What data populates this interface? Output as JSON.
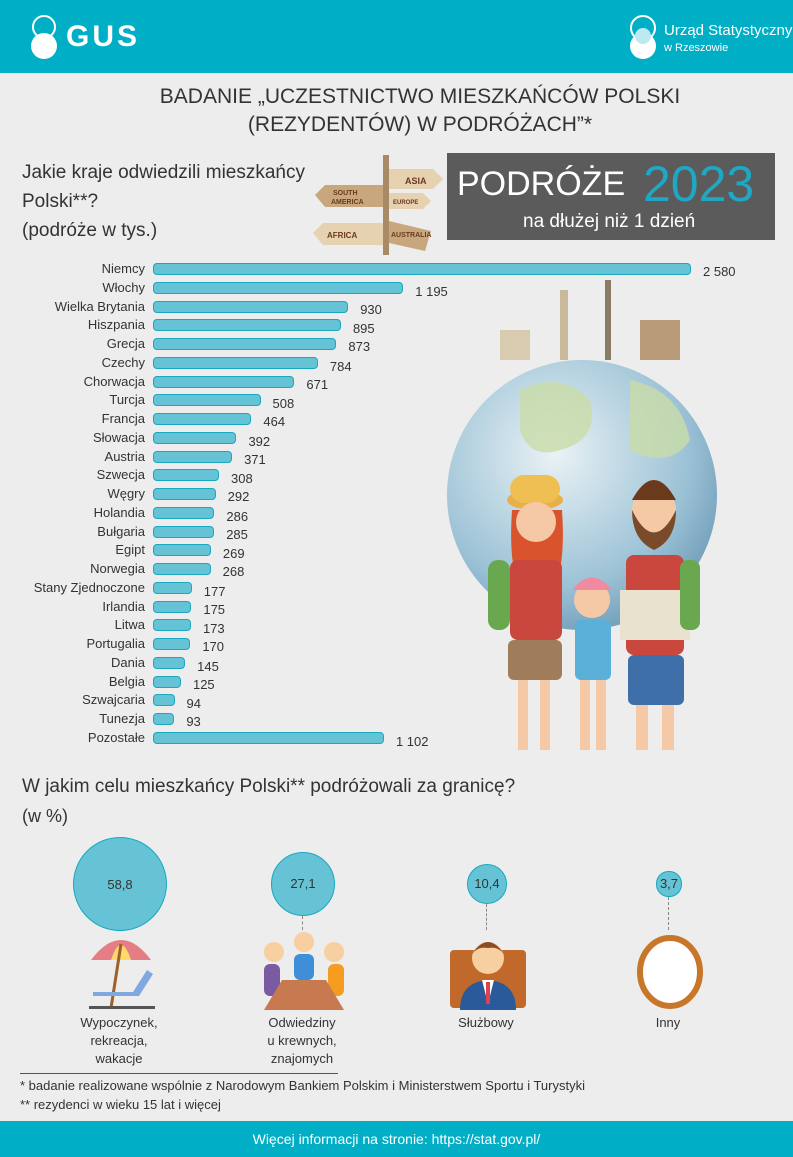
{
  "header": {
    "logo_text": "GUS",
    "office_name": "Urząd Statystyczny",
    "office_city": "w Rzeszowie",
    "color": "#00afc6"
  },
  "title_line1": "BADANIE „UCZESTNICTWO MIESZKAŃCÓW POLSKI",
  "title_line2": "(REZYDENTÓW) W PODRÓŻACH”*",
  "banner": {
    "word": "PODRÓŻE",
    "year": "2023",
    "subtitle": "na dłużej niż 1 dzień"
  },
  "signpost_labels": [
    "ASIA",
    "SOUTH AMERICA",
    "EUROPE",
    "AFRICA",
    "AUSTRALIA"
  ],
  "chart_data": [
    {
      "type": "bar",
      "orientation": "horizontal",
      "title": "Jakie kraje odwiedzili mieszkańcy Polski**?",
      "title_line1": "Jakie kraje odwiedzili mieszkańcy",
      "title_line2": "Polski**?",
      "unit_label": "(podróże w tys.)",
      "bar_color": "#66c3d5",
      "categories": [
        "Niemcy",
        "Włochy",
        "Wielka Brytania",
        "Hiszpania",
        "Grecja",
        "Czechy",
        "Chorwacja",
        "Turcja",
        "Francja",
        "Słowacja",
        "Austria",
        "Szwecja",
        "Węgry",
        "Holandia",
        "Bułgaria",
        "Egipt",
        "Norwegia",
        "Stany Zjednoczone",
        "Irlandia",
        "Litwa",
        "Portugalia",
        "Dania",
        "Belgia",
        "Szwajcaria",
        "Tunezja",
        "Pozostałe"
      ],
      "values": [
        2580,
        1195,
        930,
        895,
        873,
        784,
        671,
        508,
        464,
        392,
        371,
        308,
        292,
        286,
        285,
        269,
        268,
        177,
        175,
        173,
        170,
        145,
        125,
        94,
        93,
        1102
      ],
      "value_labels": [
        "2 580",
        "1 195",
        "930",
        "895",
        "873",
        "784",
        "671",
        "508",
        "464",
        "392",
        "371",
        "308",
        "292",
        "286",
        "285",
        "269",
        "268",
        "177",
        "175",
        "173",
        "170",
        "145",
        "125",
        "94",
        "93",
        "1 102"
      ]
    },
    {
      "type": "bubble",
      "title": "W jakim celu mieszkańcy Polski** podróżowali za granicę?",
      "unit_label": "(w %)",
      "categories": [
        {
          "label": [
            "Wypoczynek,",
            "rekreacja,",
            "wakacje"
          ],
          "value": 58.8,
          "value_label": "58,8",
          "icon": "beach-umbrella-icon"
        },
        {
          "label": [
            "Odwiedziny",
            "u krewnych,",
            "znajomych"
          ],
          "value": 27.1,
          "value_label": "27,1",
          "icon": "family-meeting-icon"
        },
        {
          "label": [
            "Służbowy"
          ],
          "value": 10.4,
          "value_label": "10,4",
          "icon": "businessman-icon"
        },
        {
          "label": [
            "Inny"
          ],
          "value": 3.7,
          "value_label": "3,7",
          "icon": "ring-icon"
        }
      ]
    }
  ],
  "footnotes": [
    " * badanie realizowane wspólnie z Narodowym Bankiem Polskim i Ministerstwem Sportu i Turystyki",
    "** rezydenci w wieku 15 lat i więcej"
  ],
  "footer_text": "Więcej informacji na stronie: https://stat.gov.pl/"
}
